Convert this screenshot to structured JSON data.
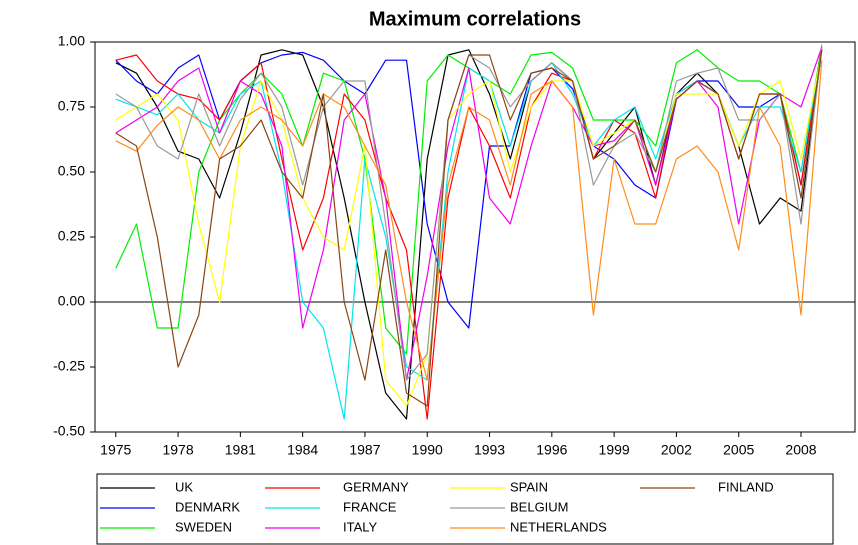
{
  "chart_data": {
    "type": "line",
    "title": "Maximum correlations",
    "x": [
      1975,
      1976,
      1977,
      1978,
      1979,
      1980,
      1981,
      1982,
      1983,
      1984,
      1985,
      1986,
      1987,
      1988,
      1989,
      1990,
      1991,
      1992,
      1993,
      1994,
      1995,
      1996,
      1997,
      1998,
      1999,
      2000,
      2001,
      2002,
      2003,
      2004,
      2005,
      2006,
      2007,
      2008,
      2009
    ],
    "xlim": [
      1974,
      2010.6
    ],
    "xticks": [
      1975,
      1978,
      1981,
      1984,
      1987,
      1990,
      1993,
      1996,
      1999,
      2002,
      2005,
      2008
    ],
    "ylim": [
      -0.5,
      1.0
    ],
    "yticks": [
      {
        "value": -0.5,
        "label": "-0.50"
      },
      {
        "value": -0.25,
        "label": "-0.25"
      },
      {
        "value": 0,
        "label": "0.00"
      },
      {
        "value": 0.25,
        "label": "0.25"
      },
      {
        "value": 0.5,
        "label": "0.50"
      },
      {
        "value": 0.75,
        "label": "0.75"
      },
      {
        "value": 1.0,
        "label": "1.00"
      }
    ],
    "zero_line": true,
    "legend_position": "bottom",
    "legend_rows": 3,
    "series": [
      {
        "name": "UK",
        "color": "#000000",
        "values": [
          0.92,
          0.88,
          0.75,
          0.58,
          0.55,
          0.4,
          0.65,
          0.95,
          0.97,
          0.95,
          0.75,
          0.4,
          0.0,
          -0.35,
          -0.45,
          0.55,
          0.95,
          0.97,
          0.8,
          0.55,
          0.85,
          0.92,
          0.85,
          0.55,
          0.65,
          0.75,
          0.45,
          0.8,
          0.88,
          0.8,
          0.6,
          0.3,
          0.4,
          0.35,
          0.97
        ]
      },
      {
        "name": "DENMARK",
        "color": "#0000ff",
        "values": [
          0.93,
          0.85,
          0.8,
          0.9,
          0.95,
          0.7,
          0.85,
          0.92,
          0.95,
          0.96,
          0.93,
          0.85,
          0.8,
          0.93,
          0.93,
          0.3,
          0.0,
          -0.1,
          0.6,
          0.6,
          0.88,
          0.9,
          0.82,
          0.6,
          0.55,
          0.45,
          0.4,
          0.78,
          0.85,
          0.85,
          0.75,
          0.75,
          0.8,
          0.45,
          0.98
        ]
      },
      {
        "name": "SWEDEN",
        "color": "#00ee00",
        "values": [
          0.13,
          0.3,
          -0.1,
          -0.1,
          0.5,
          0.7,
          0.8,
          0.88,
          0.8,
          0.6,
          0.88,
          0.85,
          0.55,
          -0.1,
          -0.2,
          0.85,
          0.95,
          0.9,
          0.85,
          0.8,
          0.95,
          0.96,
          0.9,
          0.7,
          0.7,
          0.7,
          0.6,
          0.92,
          0.97,
          0.9,
          0.85,
          0.85,
          0.8,
          0.5,
          0.99
        ]
      },
      {
        "name": "GERMANY",
        "color": "#ff0000",
        "values": [
          0.93,
          0.95,
          0.85,
          0.8,
          0.78,
          0.7,
          0.85,
          0.92,
          0.55,
          0.2,
          0.4,
          0.8,
          0.7,
          0.4,
          0.2,
          -0.45,
          0.4,
          0.75,
          0.6,
          0.4,
          0.75,
          0.88,
          0.85,
          0.55,
          0.7,
          0.65,
          0.4,
          0.8,
          0.85,
          0.8,
          0.55,
          0.8,
          0.8,
          0.45,
          0.98
        ]
      },
      {
        "name": "FRANCE",
        "color": "#00e5ee",
        "values": [
          0.78,
          0.75,
          0.72,
          0.8,
          0.7,
          0.65,
          0.8,
          0.85,
          0.5,
          0.0,
          -0.1,
          -0.45,
          0.55,
          0.25,
          -0.25,
          -0.3,
          0.5,
          0.9,
          0.85,
          0.6,
          0.85,
          0.92,
          0.8,
          0.6,
          0.7,
          0.75,
          0.55,
          0.8,
          0.85,
          0.8,
          0.6,
          0.75,
          0.75,
          0.5,
          0.97
        ]
      },
      {
        "name": "ITALY",
        "color": "#ee00ee",
        "values": [
          0.65,
          0.7,
          0.75,
          0.85,
          0.9,
          0.65,
          0.85,
          0.8,
          0.6,
          -0.1,
          0.2,
          0.7,
          0.8,
          0.4,
          -0.3,
          0.1,
          0.6,
          0.9,
          0.4,
          0.3,
          0.6,
          0.85,
          0.75,
          0.6,
          0.62,
          0.7,
          0.45,
          0.78,
          0.85,
          0.75,
          0.3,
          0.7,
          0.8,
          0.75,
          0.98
        ]
      },
      {
        "name": "SPAIN",
        "color": "#ffff00",
        "values": [
          0.7,
          0.75,
          0.8,
          0.7,
          0.3,
          0.0,
          0.6,
          0.85,
          0.7,
          0.4,
          0.25,
          0.2,
          0.6,
          -0.3,
          -0.4,
          -0.2,
          0.7,
          0.8,
          0.85,
          0.5,
          0.75,
          0.85,
          0.85,
          0.6,
          0.65,
          0.7,
          0.5,
          0.8,
          0.8,
          0.8,
          0.6,
          0.8,
          0.85,
          0.55,
          0.96
        ]
      },
      {
        "name": "BELGIUM",
        "color": "#999999",
        "values": [
          0.8,
          0.75,
          0.6,
          0.55,
          0.8,
          0.6,
          0.78,
          0.88,
          0.75,
          0.45,
          0.75,
          0.85,
          0.85,
          0.3,
          -0.3,
          -0.2,
          0.7,
          0.95,
          0.9,
          0.75,
          0.85,
          0.92,
          0.85,
          0.45,
          0.6,
          0.65,
          0.5,
          0.85,
          0.88,
          0.9,
          0.7,
          0.7,
          0.8,
          0.3,
          0.98
        ]
      },
      {
        "name": "NETHERLANDS",
        "color": "#ff8c1a",
        "values": [
          0.62,
          0.58,
          0.68,
          0.75,
          0.7,
          0.55,
          0.7,
          0.75,
          0.7,
          0.6,
          0.8,
          0.75,
          0.6,
          0.45,
          0.0,
          -0.3,
          0.45,
          0.75,
          0.7,
          0.45,
          0.8,
          0.85,
          0.75,
          -0.05,
          0.55,
          0.3,
          0.3,
          0.55,
          0.6,
          0.5,
          0.2,
          0.75,
          0.6,
          -0.05,
          0.93
        ]
      },
      {
        "name": "FINLAND",
        "color": "#8b4513",
        "values": [
          0.65,
          0.6,
          0.25,
          -0.25,
          -0.05,
          0.55,
          0.6,
          0.7,
          0.5,
          0.4,
          0.8,
          0.0,
          -0.3,
          0.2,
          -0.35,
          -0.4,
          0.7,
          0.95,
          0.95,
          0.7,
          0.88,
          0.9,
          0.85,
          0.55,
          0.6,
          0.7,
          0.5,
          0.78,
          0.85,
          0.8,
          0.55,
          0.8,
          0.8,
          0.4,
          0.97
        ]
      }
    ]
  }
}
